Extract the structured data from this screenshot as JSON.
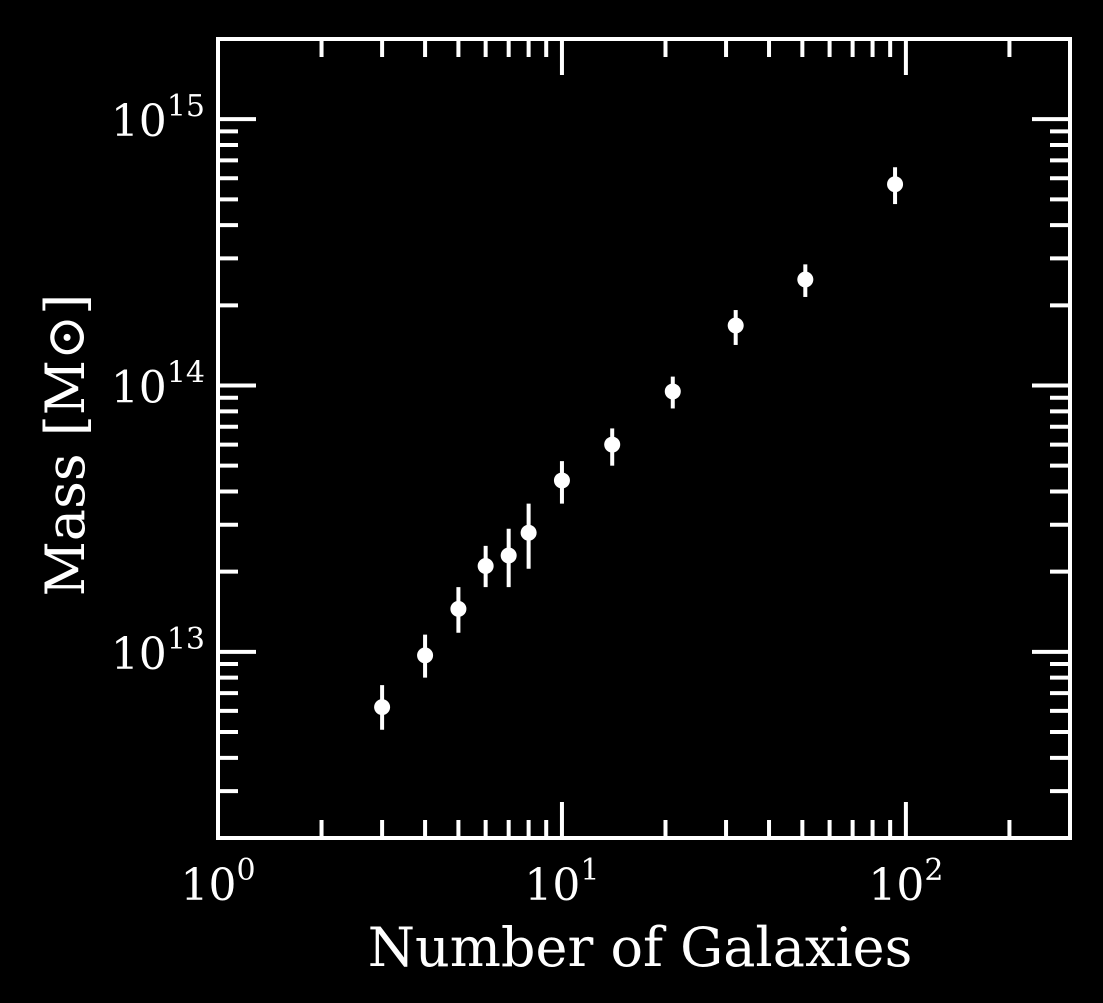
{
  "chart_data": {
    "type": "scatter",
    "title": "",
    "xlabel": "Number of Galaxies",
    "ylabel": "Mass [M⊙]",
    "xscale": "log",
    "yscale": "log",
    "xlim": [
      1,
      300
    ],
    "ylim": [
      2000000000000.0,
      2000000000000000.0
    ],
    "grid": false,
    "legend": "none",
    "colors": {
      "background": "#000000",
      "foreground": "#ffffff"
    },
    "x_ticks": [
      {
        "base": "10",
        "exp": "0",
        "value": 1
      },
      {
        "base": "10",
        "exp": "1",
        "value": 10
      },
      {
        "base": "10",
        "exp": "2",
        "value": 100
      }
    ],
    "y_ticks": [
      {
        "base": "10",
        "exp": "13",
        "value": 10000000000000.0
      },
      {
        "base": "10",
        "exp": "14",
        "value": 100000000000000.0
      },
      {
        "base": "10",
        "exp": "15",
        "value": 1000000000000000.0
      }
    ],
    "points": [
      {
        "x": 3,
        "y": 6200000000000.0,
        "y_low": 5100000000000.0,
        "y_high": 7500000000000.0
      },
      {
        "x": 4,
        "y": 9700000000000.0,
        "y_low": 8000000000000.0,
        "y_high": 11600000000000.0
      },
      {
        "x": 5,
        "y": 14500000000000.0,
        "y_low": 11800000000000.0,
        "y_high": 17500000000000.0
      },
      {
        "x": 6,
        "y": 21000000000000.0,
        "y_low": 17500000000000.0,
        "y_high": 25000000000000.0
      },
      {
        "x": 7,
        "y": 23000000000000.0,
        "y_low": 17500000000000.0,
        "y_high": 29000000000000.0
      },
      {
        "x": 8,
        "y": 28000000000000.0,
        "y_low": 20500000000000.0,
        "y_high": 36000000000000.0
      },
      {
        "x": 10,
        "y": 44000000000000.0,
        "y_low": 36000000000000.0,
        "y_high": 52000000000000.0
      },
      {
        "x": 14,
        "y": 60000000000000.0,
        "y_low": 50000000000000.0,
        "y_high": 69000000000000.0
      },
      {
        "x": 21,
        "y": 95000000000000.0,
        "y_low": 82000000000000.0,
        "y_high": 108000000000000.0
      },
      {
        "x": 32,
        "y": 168000000000000.0,
        "y_low": 142000000000000.0,
        "y_high": 192000000000000.0
      },
      {
        "x": 51,
        "y": 250000000000000.0,
        "y_low": 215000000000000.0,
        "y_high": 285000000000000.0
      },
      {
        "x": 93,
        "y": 570000000000000.0,
        "y_low": 480000000000000.0,
        "y_high": 660000000000000.0
      }
    ]
  }
}
